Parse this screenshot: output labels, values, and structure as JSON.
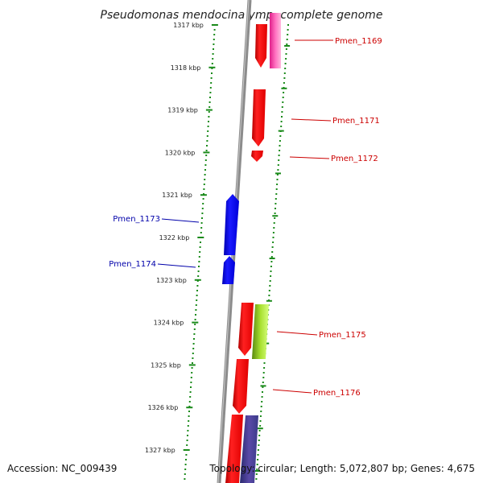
{
  "title": "Pseudomonas mendocina ymp, complete genome",
  "footer": {
    "accession": "Accession: NC_009439",
    "topology": "Topology: circular; Length: 5,072,807 bp; Genes: 4,675"
  },
  "colors": {
    "backbone": "#8c8c8c",
    "tick": "#1a8a1a",
    "forward_label": "#cc0000",
    "reverse_label": "#0000aa"
  },
  "kbp_ticks": [
    "1317 kbp",
    "1318 kbp",
    "1319 kbp",
    "1320 kbp",
    "1321 kbp",
    "1322 kbp",
    "1323 kbp",
    "1324 kbp",
    "1325 kbp",
    "1326 kbp",
    "1327 kbp"
  ],
  "gene_labels": [
    {
      "name": "Pmen_1169",
      "strand": "forward"
    },
    {
      "name": "Pmen_1171",
      "strand": "forward"
    },
    {
      "name": "Pmen_1172",
      "strand": "forward"
    },
    {
      "name": "Pmen_1173",
      "strand": "reverse"
    },
    {
      "name": "Pmen_1174",
      "strand": "reverse"
    },
    {
      "name": "Pmen_1175",
      "strand": "forward"
    },
    {
      "name": "Pmen_1176",
      "strand": "forward"
    }
  ]
}
